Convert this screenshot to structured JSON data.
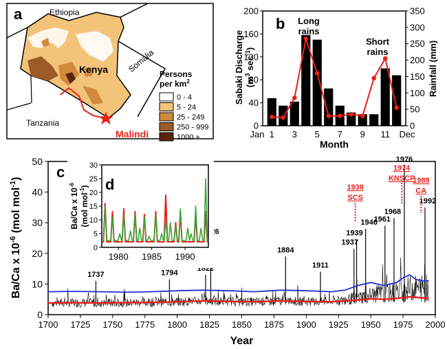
{
  "panel_a": {
    "letter": "a",
    "labels": {
      "ethiopia": "Ethiopia",
      "somalia": "Somalia",
      "kenya": "Kenya",
      "tanzania": "Tanzania",
      "malindi": "Malindi"
    },
    "legend": {
      "title_line1": "Persons",
      "title_line2": "per km",
      "title_sup": "2",
      "entries": [
        {
          "label": "0 - 4",
          "color": "#ffffff"
        },
        {
          "label": "5 - 24",
          "color": "#f4c37a"
        },
        {
          "label": "25 - 249",
          "color": "#d08a3c"
        },
        {
          "label": "250 - 999",
          "color": "#9c5a26"
        },
        {
          "label": "1000 +",
          "color": "#5a250c"
        }
      ]
    },
    "colors": {
      "river": "#e8201a",
      "star": "#e8201a",
      "malindi_text": "#e8201a"
    }
  },
  "chart_data": [
    {
      "type": "bar",
      "panel": "b",
      "xlabel": "Month",
      "ylabel_left": "Sabaki Discharge",
      "ylabel_left_unit": "(m",
      "ylabel_left_unit_sup1": "3",
      "ylabel_left_unit_mid": " sec",
      "ylabel_left_unit_sup2": "-1",
      "ylabel_left_unit_end": ")",
      "ylabel_right": "Rainfall (mm)",
      "months": [
        1,
        2,
        3,
        4,
        5,
        6,
        7,
        8,
        9,
        10,
        11,
        12
      ],
      "x_tick_labels": [
        "Jan",
        "1",
        "3",
        "5",
        "7",
        "9",
        "11",
        "Dec"
      ],
      "discharge_values": [
        48,
        35,
        42,
        158,
        150,
        65,
        35,
        23,
        20,
        20,
        100,
        88
      ],
      "rainfall_values": [
        27,
        25,
        85,
        265,
        160,
        30,
        30,
        35,
        30,
        145,
        205,
        55
      ],
      "ylim_left": [
        0,
        200
      ],
      "yticks_left": [
        0,
        40,
        80,
        120,
        160,
        200
      ],
      "ylim_right": [
        0,
        350
      ],
      "yticks_right": [
        0,
        50,
        100,
        150,
        200,
        250,
        300,
        350
      ],
      "annotations": [
        {
          "line1": "Long",
          "line2": "rains",
          "month": 4
        },
        {
          "line1": "Short",
          "line2": "rains",
          "month": 11
        }
      ],
      "colors": {
        "bars": "#000000",
        "rainfall": "#e8201a"
      }
    },
    {
      "type": "line",
      "panel": "c",
      "xlabel": "Year",
      "ylabel": "Ba/Ca x 10",
      "ylabel_sup": "-6",
      "ylabel_unit": " (mol mol",
      "ylabel_unit_sup": "-1",
      "ylabel_unit_end": ")",
      "xlim": [
        1700,
        2000
      ],
      "xticks": [
        1700,
        1725,
        1750,
        1775,
        1800,
        1825,
        1850,
        1875,
        1900,
        1925,
        1950,
        1975,
        2000
      ],
      "ylim": [
        0,
        50
      ],
      "yticks": [
        0,
        10,
        20,
        30,
        40,
        50
      ],
      "peaks": [
        {
          "year": 1737,
          "value": 11,
          "label": "1737"
        },
        {
          "year": 1794,
          "value": 11.5,
          "label": "1794"
        },
        {
          "year": 1822,
          "value": 13,
          "label": "1822"
        },
        {
          "year": 1826,
          "value": 25,
          "label": "1826"
        },
        {
          "year": 1884,
          "value": 19,
          "label": "1884"
        },
        {
          "year": 1911,
          "value": 14,
          "label": "1911"
        },
        {
          "year": 1937,
          "value": 21.5,
          "label": "1937"
        },
        {
          "year": 1939,
          "value": 24.5,
          "label": "1939"
        },
        {
          "year": 1946,
          "value": 28,
          "label": "1946"
        },
        {
          "year": 1961,
          "value": 29,
          "label": "1961"
        },
        {
          "year": 1968,
          "value": 31.5,
          "label": "1968"
        },
        {
          "year": 1976,
          "value": 49,
          "label": "1976"
        },
        {
          "year": 1992,
          "value": 35,
          "label": "1992"
        }
      ],
      "events": [
        {
          "year": 1938,
          "line1": "1938",
          "line2": "SCS"
        },
        {
          "year": 1974,
          "line1": "1974",
          "line2": "KNSCP"
        },
        {
          "year": 1989,
          "line1": "1989",
          "line2": "CA"
        }
      ],
      "blue_line": {
        "x": [
          1700,
          1720,
          1740,
          1760,
          1780,
          1800,
          1820,
          1840,
          1860,
          1880,
          1900,
          1920,
          1930,
          1940,
          1950,
          1960,
          1970,
          1975,
          1980,
          1985,
          1990,
          1995
        ],
        "y": [
          7.5,
          7.6,
          7.5,
          7.3,
          7.5,
          7.8,
          8.0,
          7.8,
          7.5,
          8.0,
          7.8,
          7.5,
          8.0,
          9.5,
          10.5,
          9.5,
          10.5,
          12.0,
          13.0,
          11.5,
          11.0,
          11.0
        ]
      },
      "red_line": {
        "x": [
          1700,
          1720,
          1740,
          1760,
          1780,
          1800,
          1820,
          1840,
          1860,
          1880,
          1900,
          1920,
          1940,
          1950,
          1960,
          1970,
          1980,
          1990,
          1995
        ],
        "y": [
          3.8,
          3.9,
          3.8,
          3.9,
          4.0,
          4.2,
          4.5,
          4.3,
          4.2,
          4.5,
          4.3,
          4.2,
          4.8,
          5.2,
          5.0,
          5.3,
          5.8,
          5.5,
          5.3
        ]
      },
      "colors": {
        "raw": "#000000",
        "blue": "#1f2fd6",
        "red": "#e8201a",
        "events": "#e8201a"
      }
    },
    {
      "type": "line",
      "panel": "d",
      "ylabel_line1": "Ba/Ca x 10",
      "ylabel_line1_sup": "-6",
      "ylabel_line2": "(mol mol",
      "ylabel_line2_sup": "-1",
      "ylabel_line2_end": ")",
      "xlim": [
        1977.5,
        1993.5
      ],
      "xticks": [
        1980,
        1985,
        1990
      ],
      "ylim": [
        0,
        30
      ],
      "yticks": [
        0,
        5,
        10,
        15,
        20,
        25,
        30
      ],
      "green_peaks": [
        {
          "x": 1978.0,
          "y": 15
        },
        {
          "x": 1979.1,
          "y": 11
        },
        {
          "x": 1980.2,
          "y": 5
        },
        {
          "x": 1980.8,
          "y": 12
        },
        {
          "x": 1981.8,
          "y": 6
        },
        {
          "x": 1982.5,
          "y": 12
        },
        {
          "x": 1983.2,
          "y": 7
        },
        {
          "x": 1983.9,
          "y": 11
        },
        {
          "x": 1984.6,
          "y": 4
        },
        {
          "x": 1985.6,
          "y": 12
        },
        {
          "x": 1986.5,
          "y": 5
        },
        {
          "x": 1987.1,
          "y": 10
        },
        {
          "x": 1987.8,
          "y": 9
        },
        {
          "x": 1988.6,
          "y": 8
        },
        {
          "x": 1989.3,
          "y": 14
        },
        {
          "x": 1990.4,
          "y": 7
        },
        {
          "x": 1990.9,
          "y": 5
        },
        {
          "x": 1991.6,
          "y": 15
        },
        {
          "x": 1992.4,
          "y": 7
        },
        {
          "x": 1993.1,
          "y": 25
        }
      ],
      "red_peaks": [
        {
          "x": 1978.0,
          "y": 16
        },
        {
          "x": 1979.1,
          "y": 13
        },
        {
          "x": 1980.8,
          "y": 14
        },
        {
          "x": 1982.5,
          "y": 13
        },
        {
          "x": 1983.9,
          "y": 12
        },
        {
          "x": 1985.6,
          "y": 13
        },
        {
          "x": 1987.1,
          "y": 19
        },
        {
          "x": 1988.6,
          "y": 9
        },
        {
          "x": 1989.3,
          "y": 13
        },
        {
          "x": 1991.6,
          "y": 12
        },
        {
          "x": 1993.1,
          "y": 13
        }
      ],
      "colors": {
        "green": "#3aa53a",
        "red": "#e8201a"
      }
    }
  ]
}
